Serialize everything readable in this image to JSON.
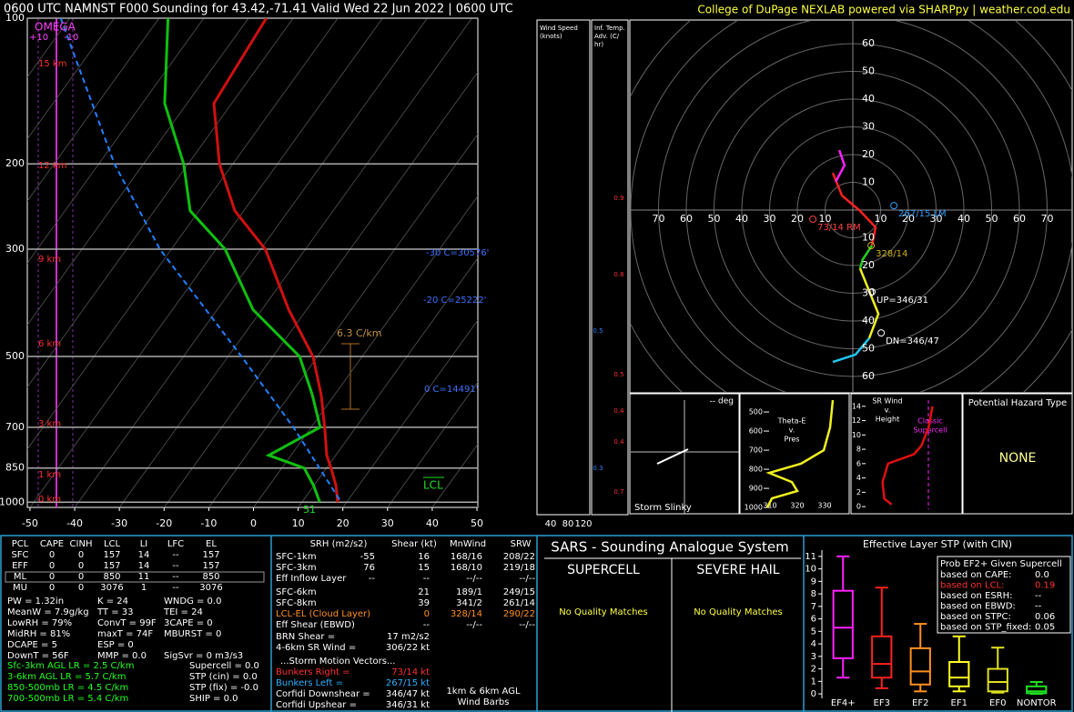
{
  "header": {
    "title": "0600 UTC NAMNST F000 Sounding for 43.42,-71.41 Valid  Wed 22 Jun 2022 | 0600 UTC",
    "credit": "College of DuPage NEXLAB powered via SHARPpy | weather.cod.edu"
  },
  "chart_data": [
    {
      "type": "skewt",
      "log_y": true,
      "ylim": [
        100,
        1025
      ],
      "yticks": [
        100,
        200,
        300,
        500,
        700,
        850,
        1000
      ],
      "xlim": [
        -50.6,
        50.2
      ],
      "xticks": [
        -50,
        -40,
        -30,
        -20,
        -10,
        0,
        10,
        20,
        30,
        40,
        50
      ],
      "grid": true,
      "series": [
        {
          "color": "#d01010",
          "pressure": [
            100,
            150,
            200,
            250,
            300,
            400,
            500,
            600,
            700,
            800,
            850,
            925,
            1000
          ],
          "values": [
            -76,
            -74,
            -63,
            -52,
            -39,
            -24,
            -11,
            -3,
            3,
            8,
            11,
            15,
            18
          ]
        },
        {
          "color": "#10c010",
          "pressure": [
            100,
            150,
            200,
            250,
            300,
            400,
            500,
            600,
            700,
            800,
            850,
            925,
            1000
          ],
          "values": [
            -98,
            -85,
            -71,
            -62,
            -48,
            -32,
            -14,
            -5,
            2,
            -5,
            5,
            10,
            14
          ]
        },
        {
          "color": "#2080ff",
          "dashed": true,
          "pressure": [
            100,
            200,
            300,
            500,
            700,
            1000
          ],
          "values": [
            -122,
            -86.5,
            -62.6,
            -27,
            -4,
            18.8
          ]
        }
      ],
      "height_labels": [
        "15 km",
        "12 km",
        "9 km",
        "6 km",
        "3 km",
        "1 km",
        "0 km"
      ],
      "annotations": [
        "OMEGA",
        "+10",
        "-10",
        "6.3 C/km",
        "-30 C=30576'",
        "-20 C=25222'",
        "0 C=14491'",
        "LCL",
        "51"
      ]
    },
    {
      "type": "hodograph",
      "ticks": [
        10,
        20,
        30,
        40,
        50,
        60,
        70
      ],
      "vticks": [
        10,
        20,
        30,
        40,
        50,
        60
      ],
      "series": [
        {
          "color": "#ff2020",
          "u": [
            -7.2,
            -3.9,
            2.6,
            8.2,
            6.9
          ],
          "v": [
            13.4,
            5.2,
            -0.3,
            -6.2,
            -12.8
          ]
        },
        {
          "color": "#20d020",
          "u": [
            6.9,
            3.6,
            2.6
          ],
          "v": [
            -12.8,
            -17.7,
            -21
          ]
        },
        {
          "color": "#f0f020",
          "u": [
            2.6,
            5.9,
            9.2,
            5.9
          ],
          "v": [
            -21,
            -29.2,
            -37.4,
            -46.2
          ]
        },
        {
          "color": "#20c8f0",
          "u": [
            5.9,
            1,
            -7.2
          ],
          "v": [
            -46.2,
            -52.1,
            -54.8
          ]
        },
        {
          "color": "#ff20ff",
          "u": [
            -6.2,
            -3,
            -4.9
          ],
          "v": [
            10.2,
            16.1,
            21.6
          ]
        }
      ],
      "markers": [
        {
          "label": "73/14 RM",
          "u": -14.4,
          "v": -3.3,
          "color": "#ff4040"
        },
        {
          "label": "267/15 LM",
          "u": 14.8,
          "v": 1.6,
          "color": "#30a0ff"
        },
        {
          "label": "328/14",
          "u": 6.6,
          "v": -12.8,
          "color": "#d0b020"
        },
        {
          "label": "UP=346/31",
          "u": 6.9,
          "v": -29.5,
          "color": "#ffffff"
        },
        {
          "label": "DN=346/47",
          "u": 10.2,
          "v": -44.3,
          "color": "#ffffff"
        }
      ]
    },
    {
      "type": "line",
      "title": [
        "Theta-E",
        "v.",
        "Pres"
      ],
      "color": "#f0f020",
      "x": [
        333,
        332,
        329.7,
        321.3,
        309.7,
        318,
        320,
        310.7,
        309
      ],
      "values": [
        438,
        581,
        700,
        771,
        819,
        867,
        914,
        952,
        1000
      ],
      "xlim": [
        299,
        339
      ],
      "xticks": [
        310,
        320,
        330
      ],
      "ylim": [
        414,
        1033
      ],
      "yticks": [
        500,
        600,
        700,
        800,
        900,
        1000
      ]
    },
    {
      "type": "line",
      "title": [
        "SR Wind",
        "v.",
        "Height"
      ],
      "annotation": [
        "Classic",
        "Supercell"
      ],
      "color": "#e01010",
      "x": [
        44,
        42,
        38,
        34,
        20,
        17,
        18,
        22
      ],
      "values": [
        14,
        11.1,
        8.5,
        7.3,
        6,
        3.4,
        1.1,
        0.3
      ],
      "xlim": [
        0,
        60
      ],
      "ylim": [
        -1,
        15.5
      ],
      "yticks": [
        0,
        2,
        4,
        6,
        8,
        10,
        12,
        14
      ]
    },
    {
      "type": "box",
      "title": "Effective Layer STP (with CIN)",
      "ylim": [
        -0.36,
        11.5
      ],
      "yticks": [
        0,
        1,
        2,
        3,
        4,
        5,
        6,
        7,
        8,
        9,
        10,
        11
      ],
      "categories": [
        "EF4+",
        "EF3",
        "EF2",
        "EF1",
        "EF0",
        "NONTOR"
      ],
      "boxes": [
        {
          "color": "#ff20ff",
          "low": 1.3,
          "q1": 2.85,
          "median": 5.3,
          "q3": 8.25,
          "high": 11
        },
        {
          "color": "#ff2020",
          "low": 0.45,
          "q1": 1.3,
          "median": 2.4,
          "q3": 4.6,
          "high": 8.5
        },
        {
          "color": "#ff9020",
          "low": 0.2,
          "q1": 0.75,
          "median": 1.8,
          "q3": 3.65,
          "high": 5.6
        },
        {
          "color": "#ffff20",
          "low": 0.2,
          "q1": 0.6,
          "median": 1.3,
          "q3": 2.55,
          "high": 4.6
        },
        {
          "color": "#e0e020",
          "low": 0.1,
          "q1": 0.2,
          "median": 0.95,
          "q3": 2,
          "high": 3.7
        },
        {
          "color": "#20e020",
          "low": 0,
          "q1": 0.05,
          "median": 0.2,
          "q3": 0.6,
          "high": 0.95
        }
      ]
    }
  ],
  "wind_panel": {
    "title": [
      "Wind Speed",
      "(knots)"
    ],
    "ticks": [
      "40",
      "80",
      "120"
    ]
  },
  "tadv_panel": {
    "title": [
      "Inf. Temp.",
      "Adv. (C/",
      "hr)"
    ],
    "labels": [
      "0.9",
      "0.8",
      "0.5",
      "0.5",
      "0.4",
      "0.4",
      "0.3",
      "0.7"
    ]
  },
  "slinky": {
    "direction": "-- deg",
    "title": "Storm Slinky"
  },
  "hazard": {
    "title": "Potential Hazard Type",
    "value": "NONE"
  },
  "parcel_table": {
    "header": [
      "PCL",
      "CAPE",
      "CINH",
      "LCL",
      "LI",
      "LFC",
      "EL"
    ],
    "rows": [
      [
        "SFC",
        "0",
        "0",
        "157",
        "14",
        "--",
        "157"
      ],
      [
        "EFF",
        "0",
        "0",
        "157",
        "14",
        "--",
        "157"
      ],
      [
        "ML",
        "0",
        "0",
        "850",
        "11",
        "--",
        "850"
      ],
      [
        "MU",
        "0",
        "0",
        "3076",
        "1",
        "--",
        "3076"
      ]
    ]
  },
  "indices": [
    [
      "PW = 1.32in",
      "MeanW = 7.9g/kg",
      "LowRH = 79%",
      "MidRH = 81%",
      "DCAPE = 5",
      "DownT = 56F"
    ],
    [
      "K = 24",
      "TT = 33",
      "ConvT = 99F",
      "maxT = 74F",
      "ESP = 0",
      "MMP = 0.0"
    ],
    [
      "WNDG = 0.0",
      "TEI = 24",
      "3CAPE = 0",
      "MBURST = 0",
      "SigSvr = 0 m3/s3"
    ]
  ],
  "lapse_rates": [
    "Sfc-3km AGL LR = 2.5 C/km",
    "3-6km AGL LR = 5.7 C/km",
    "850-500mb LR = 4.5 C/km",
    "700-500mb LR = 5.4 C/km"
  ],
  "composites": [
    "Supercell = 0.0",
    "STP (cin) = 0.0",
    "STP (fix) = -0.0",
    "SHIP = 0.0"
  ],
  "kinematics": {
    "header": [
      "SRH (m2/s2)",
      "Shear (kt)",
      "MnWind",
      "SRW"
    ],
    "rows": [
      [
        "SFC-1km",
        "-55",
        "16",
        "168/16",
        "208/22"
      ],
      [
        "SFC-3km",
        "76",
        "15",
        "168/10",
        "219/18"
      ],
      [
        "Eff Inflow Layer",
        "--",
        "--",
        "--/--",
        "--/--"
      ]
    ],
    "shear_rows": [
      [
        "SFC-6km",
        "21",
        "189/1",
        "249/15"
      ],
      [
        "SFC-8km",
        "39",
        "341/2",
        "261/14"
      ],
      [
        "LCL-EL (Cloud Layer)",
        "0",
        "328/14",
        "290/22"
      ],
      [
        "Eff Shear (EBWD)",
        "--",
        "--/--",
        "--/--"
      ]
    ],
    "other": [
      [
        "BRN Shear =",
        "17 m2/s2"
      ],
      [
        "4-6km SR Wind =",
        "306/22 kt"
      ]
    ],
    "motion_title": "...Storm Motion Vectors...",
    "motion": [
      [
        "Bunkers Right =",
        "73/14 kt"
      ],
      [
        "Bunkers Left =",
        "267/15 kt"
      ],
      [
        "Corfidi Downshear =",
        "346/47 kt"
      ],
      [
        "Corfidi Upshear =",
        "346/31 kt"
      ]
    ],
    "barb_note": [
      "1km & 6km AGL",
      "Wind Barbs"
    ]
  },
  "sars": {
    "title": "SARS - Sounding Analogue System",
    "supercell": "SUPERCELL",
    "hail": "SEVERE HAIL",
    "supercell_result": "No Quality Matches",
    "hail_result": "No Quality Matches"
  },
  "prob_box": {
    "title": "Prob EF2+ Given Supercell",
    "rows": [
      [
        "based on CAPE:",
        "0.0"
      ],
      [
        "based on LCL:",
        "0.19"
      ],
      [
        "based on ESRH:",
        "--"
      ],
      [
        "based on EBWD:",
        "--"
      ],
      [
        "based on STPC:",
        "0.06"
      ],
      [
        "based on STP_fixed:",
        "0.05"
      ]
    ]
  }
}
